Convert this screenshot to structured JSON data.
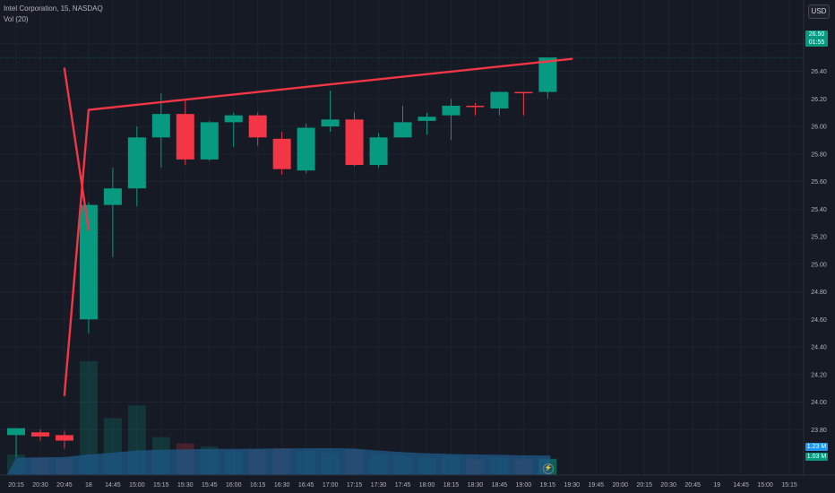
{
  "legend": {
    "symbol": "Intel Corporation, 15, NASDAQ",
    "volume": "Vol (20)"
  },
  "currency_button": "USD",
  "price_tag": {
    "price": "26.50",
    "countdown": "01:55"
  },
  "volume_tags": {
    "volume_ma": "1.23 M",
    "volume": "1.03 M"
  },
  "colors": {
    "background": "#161a25",
    "up": "#089981",
    "down": "#f23645",
    "trendline": "#f23645",
    "volume_ma_area": "#1f5a8a",
    "grid": "#1f2330",
    "axis_text": "#b2b5be"
  },
  "icons": {
    "replay": "lightning-icon"
  },
  "chart_data": {
    "type": "candlestick",
    "title": "Intel Corporation, 15, NASDAQ",
    "ylim": [
      23.6,
      26.8
    ],
    "y_ticks": [
      "26.60",
      "26.40",
      "26.20",
      "26.00",
      "25.80",
      "25.60",
      "25.40",
      "25.20",
      "25.00",
      "24.80",
      "24.60",
      "24.40",
      "24.20",
      "24.00",
      "23.80"
    ],
    "x_ticks": [
      "20:15",
      "20:30",
      "20:45",
      "18",
      "14:45",
      "15:00",
      "15:15",
      "15:30",
      "15:45",
      "16:00",
      "16:15",
      "16:30",
      "16:45",
      "17:00",
      "17:15",
      "17:30",
      "17:45",
      "18:00",
      "18:15",
      "18:30",
      "18:45",
      "19:00",
      "19:15",
      "19:30",
      "19:45",
      "20:00",
      "20:15",
      "20:30",
      "20:45",
      "19",
      "14:45",
      "15:00",
      "15:15"
    ],
    "candles": [
      {
        "x": "20:15",
        "open": 23.76,
        "high": 23.81,
        "low": 23.6,
        "close": 23.81
      },
      {
        "x": "20:30",
        "open": 23.78,
        "high": 23.8,
        "low": 23.72,
        "close": 23.75
      },
      {
        "x": "20:45",
        "open": 23.76,
        "high": 23.79,
        "low": 23.66,
        "close": 23.72
      },
      {
        "x": "18",
        "open": 24.6,
        "high": 25.45,
        "low": 24.5,
        "close": 25.43
      },
      {
        "x": "14:45",
        "open": 25.43,
        "high": 25.7,
        "low": 25.05,
        "close": 25.55
      },
      {
        "x": "15:00",
        "open": 25.55,
        "high": 26.0,
        "low": 25.42,
        "close": 25.92
      },
      {
        "x": "15:15",
        "open": 25.92,
        "high": 26.24,
        "low": 25.7,
        "close": 26.09
      },
      {
        "x": "15:30",
        "open": 26.09,
        "high": 26.2,
        "low": 25.72,
        "close": 25.76
      },
      {
        "x": "15:45",
        "open": 25.76,
        "high": 26.04,
        "low": 25.75,
        "close": 26.03
      },
      {
        "x": "16:00",
        "open": 26.03,
        "high": 26.1,
        "low": 25.85,
        "close": 26.08
      },
      {
        "x": "16:15",
        "open": 26.08,
        "high": 26.1,
        "low": 25.86,
        "close": 25.92
      },
      {
        "x": "16:30",
        "open": 25.91,
        "high": 25.96,
        "low": 25.65,
        "close": 25.69
      },
      {
        "x": "16:45",
        "open": 25.68,
        "high": 26.02,
        "low": 25.66,
        "close": 25.99
      },
      {
        "x": "17:00",
        "open": 26.0,
        "high": 26.26,
        "low": 25.96,
        "close": 26.05
      },
      {
        "x": "17:15",
        "open": 26.05,
        "high": 26.1,
        "low": 25.71,
        "close": 25.72
      },
      {
        "x": "17:30",
        "open": 25.72,
        "high": 25.95,
        "low": 25.7,
        "close": 25.92
      },
      {
        "x": "17:45",
        "open": 25.92,
        "high": 26.15,
        "low": 25.92,
        "close": 26.03
      },
      {
        "x": "18:00",
        "open": 26.04,
        "high": 26.1,
        "low": 25.94,
        "close": 26.07
      },
      {
        "x": "18:15",
        "open": 26.08,
        "high": 26.2,
        "low": 25.9,
        "close": 26.15
      },
      {
        "x": "18:30",
        "open": 26.15,
        "high": 26.17,
        "low": 26.08,
        "close": 26.14
      },
      {
        "x": "18:45",
        "open": 26.13,
        "high": 26.25,
        "low": 26.08,
        "close": 26.25
      },
      {
        "x": "19:00",
        "open": 26.25,
        "high": 26.25,
        "low": 26.08,
        "close": 26.24
      },
      {
        "x": "19:15",
        "open": 26.25,
        "high": 26.5,
        "low": 26.2,
        "close": 26.5
      }
    ],
    "volume": [
      {
        "x": "20:15",
        "value": 1.3
      },
      {
        "x": "20:30",
        "value": 1.1
      },
      {
        "x": "20:45",
        "value": 1.05
      },
      {
        "x": "18",
        "value": 7.2
      },
      {
        "x": "14:45",
        "value": 3.6
      },
      {
        "x": "15:00",
        "value": 4.4
      },
      {
        "x": "15:15",
        "value": 2.4
      },
      {
        "x": "15:30",
        "value": 2.0
      },
      {
        "x": "15:45",
        "value": 1.8
      },
      {
        "x": "16:00",
        "value": 1.5
      },
      {
        "x": "16:15",
        "value": 1.6
      },
      {
        "x": "16:30",
        "value": 1.7
      },
      {
        "x": "16:45",
        "value": 1.5
      },
      {
        "x": "17:00",
        "value": 1.4
      },
      {
        "x": "17:15",
        "value": 1.6
      },
      {
        "x": "17:30",
        "value": 1.3
      },
      {
        "x": "17:45",
        "value": 1.2
      },
      {
        "x": "18:00",
        "value": 1.1
      },
      {
        "x": "18:15",
        "value": 1.2
      },
      {
        "x": "18:30",
        "value": 1.0
      },
      {
        "x": "18:45",
        "value": 1.1
      },
      {
        "x": "19:00",
        "value": 1.0
      },
      {
        "x": "19:15",
        "value": 1.03
      }
    ],
    "volume_ma": [
      1.1,
      1.12,
      1.14,
      1.3,
      1.42,
      1.55,
      1.6,
      1.63,
      1.65,
      1.66,
      1.67,
      1.68,
      1.69,
      1.7,
      1.68,
      1.55,
      1.45,
      1.38,
      1.33,
      1.3,
      1.28,
      1.25,
      1.23
    ],
    "volume_ylim": [
      0,
      8.5
    ],
    "trendlines": [
      {
        "x1": "20:45",
        "y1": 24.05,
        "x2": "18",
        "y2": 26.12
      },
      {
        "x1": "18",
        "y1": 26.12,
        "x2": "19:30",
        "y2": 26.49
      },
      {
        "x1": "18",
        "y1": 25.25,
        "x2": "20:45",
        "y2": 26.42
      }
    ],
    "grid": true
  }
}
